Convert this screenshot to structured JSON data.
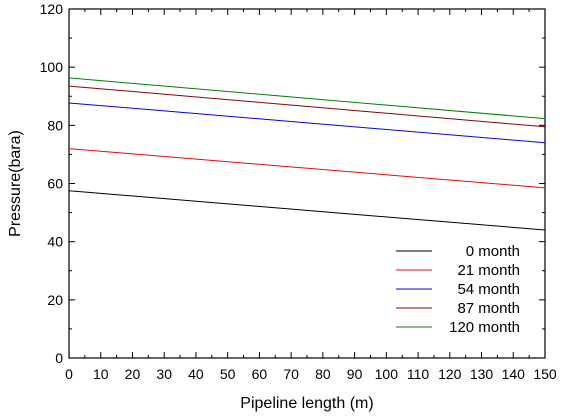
{
  "chart_data": {
    "type": "line",
    "title": "",
    "xlabel": "Pipeline length (m)",
    "ylabel": "Pressure(bara)",
    "xlim": [
      0,
      150
    ],
    "ylim": [
      0,
      120
    ],
    "x_ticks": [
      0,
      10,
      20,
      30,
      40,
      50,
      60,
      70,
      80,
      90,
      100,
      110,
      120,
      130,
      140,
      150
    ],
    "y_ticks": [
      0,
      20,
      40,
      60,
      80,
      100,
      120
    ],
    "x_tick_labels": [
      "0",
      "10",
      "20",
      "30",
      "40",
      "50",
      "60",
      "70",
      "80",
      "90",
      "100",
      "110",
      "120",
      "130",
      "140",
      "150"
    ],
    "y_tick_labels": [
      "0",
      "20",
      "40",
      "60",
      "80",
      "100",
      "120"
    ],
    "grid": false,
    "legend_position": "bottom-right",
    "x": [
      0,
      150
    ],
    "series": [
      {
        "name": "0 month",
        "color": "#000000",
        "values": [
          57.5,
          44.0
        ]
      },
      {
        "name": "21 month",
        "color": "#ff0000",
        "values": [
          72.0,
          58.5
        ]
      },
      {
        "name": "54 month",
        "color": "#0000ff",
        "values": [
          87.7,
          74.0
        ]
      },
      {
        "name": "87 month",
        "color": "#8b0000",
        "values": [
          93.5,
          79.5
        ]
      },
      {
        "name": "120 month",
        "color": "#008000",
        "values": [
          96.3,
          82.3
        ]
      }
    ]
  }
}
